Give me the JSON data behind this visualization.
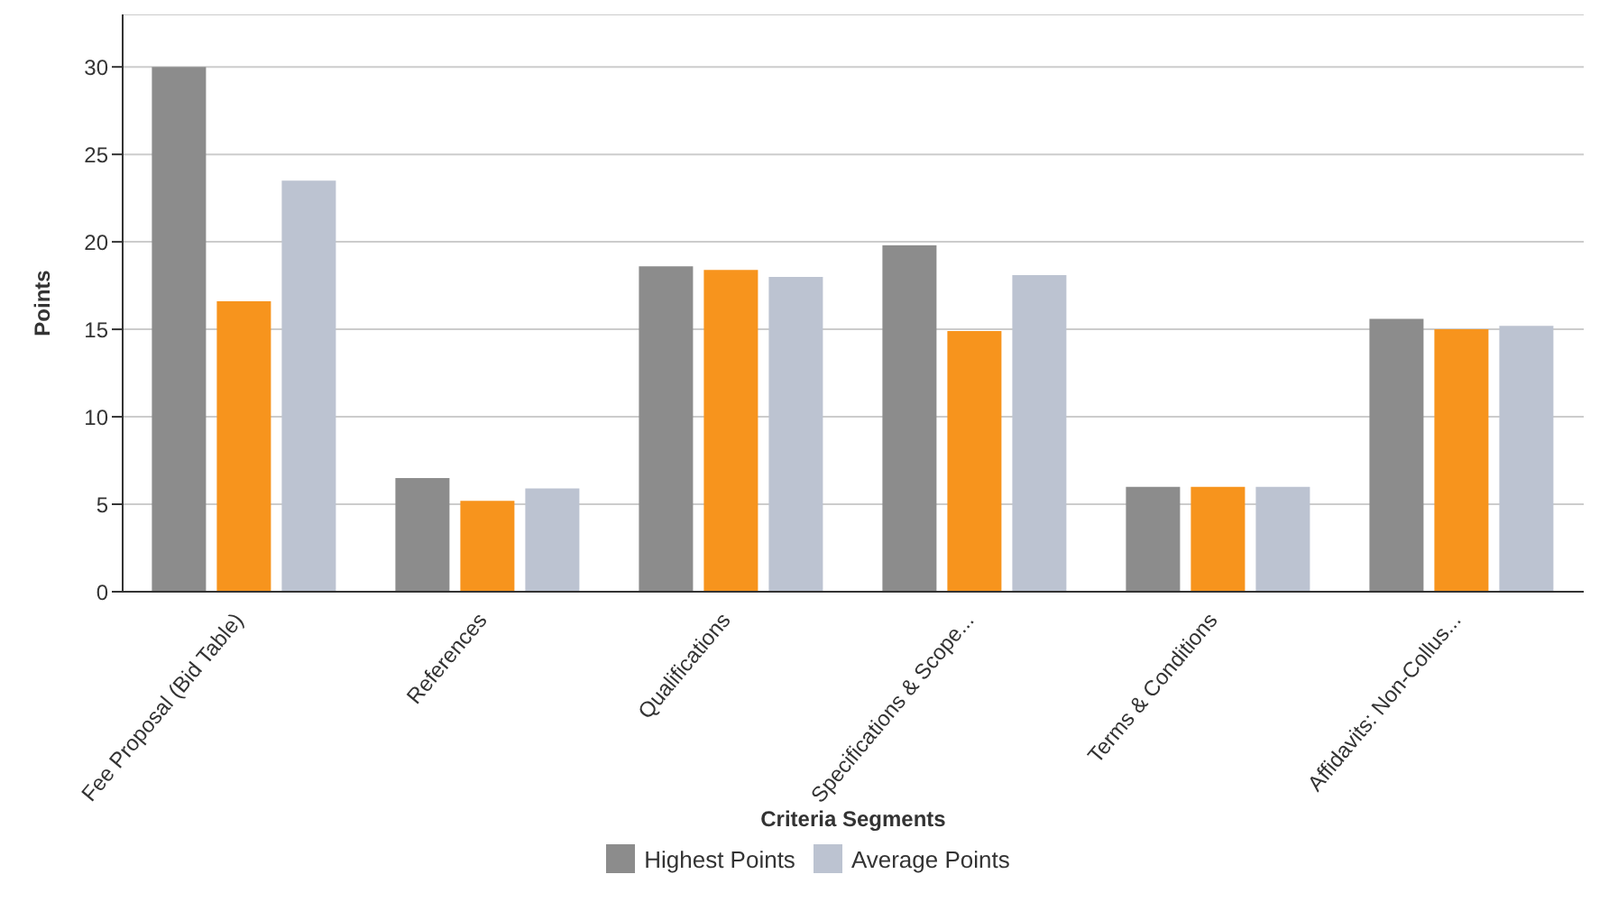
{
  "chart_data": {
    "type": "bar",
    "xlabel": "Criteria Segments",
    "ylabel": "Points",
    "categories": [
      "Fee Proposal (Bid Table)",
      "References",
      "Qualifications",
      "Specifications & Scope...",
      "Terms & Conditions",
      "Affidavits: Non-Collus..."
    ],
    "series": [
      {
        "name": "Highest Points",
        "color": "#8c8c8c",
        "values": [
          30,
          6.5,
          18.6,
          19.8,
          6,
          15.6
        ]
      },
      {
        "color": "#f7941d",
        "values": [
          16.6,
          5.2,
          18.4,
          14.9,
          6,
          15
        ]
      },
      {
        "name": "Average Points",
        "color": "#bcc3d1",
        "values": [
          23.5,
          5.9,
          18,
          18.1,
          6,
          15.2
        ]
      }
    ],
    "ylim": [
      0,
      33
    ],
    "yticks": [
      0,
      5,
      10,
      15,
      20,
      25,
      30
    ],
    "grid": "y",
    "legend": "bottom"
  }
}
